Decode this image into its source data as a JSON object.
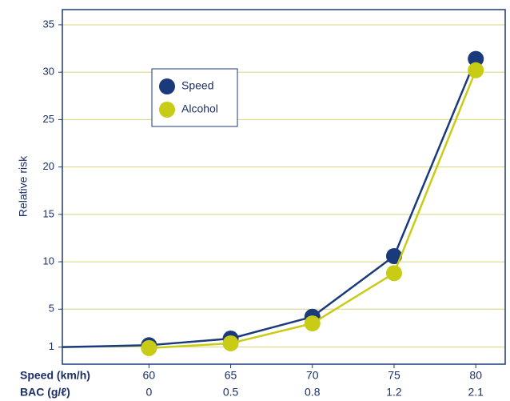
{
  "chart_data": {
    "type": "line",
    "ylabel": "Relative risk",
    "xlim": [
      54.7,
      81.8
    ],
    "ylim": [
      -0.8,
      36.6
    ],
    "yticks": [
      1,
      5,
      10,
      15,
      20,
      25,
      30,
      35
    ],
    "xticks": [
      60,
      65,
      70,
      75,
      80
    ],
    "xtick_rows": [
      {
        "name": "Speed (km/h)",
        "labels": [
          "60",
          "65",
          "70",
          "75",
          "80"
        ]
      },
      {
        "name": "BAC (g/ℓ)",
        "labels": [
          "0",
          "0.5",
          "0.8",
          "1.2",
          "2.1"
        ]
      }
    ],
    "grid": true,
    "legend": "upper left",
    "series": [
      {
        "name": "Speed",
        "color": "#1b3a7c",
        "x": [
          54.7,
          60,
          65,
          70,
          75,
          80
        ],
        "values": [
          1.0,
          1.2,
          1.9,
          4.2,
          10.6,
          31.4
        ]
      },
      {
        "name": "Alcohol",
        "color": "#c8cc14",
        "x": [
          60,
          65,
          70,
          75,
          80
        ],
        "values": [
          0.9,
          1.4,
          3.5,
          8.8,
          30.2
        ]
      }
    ]
  }
}
